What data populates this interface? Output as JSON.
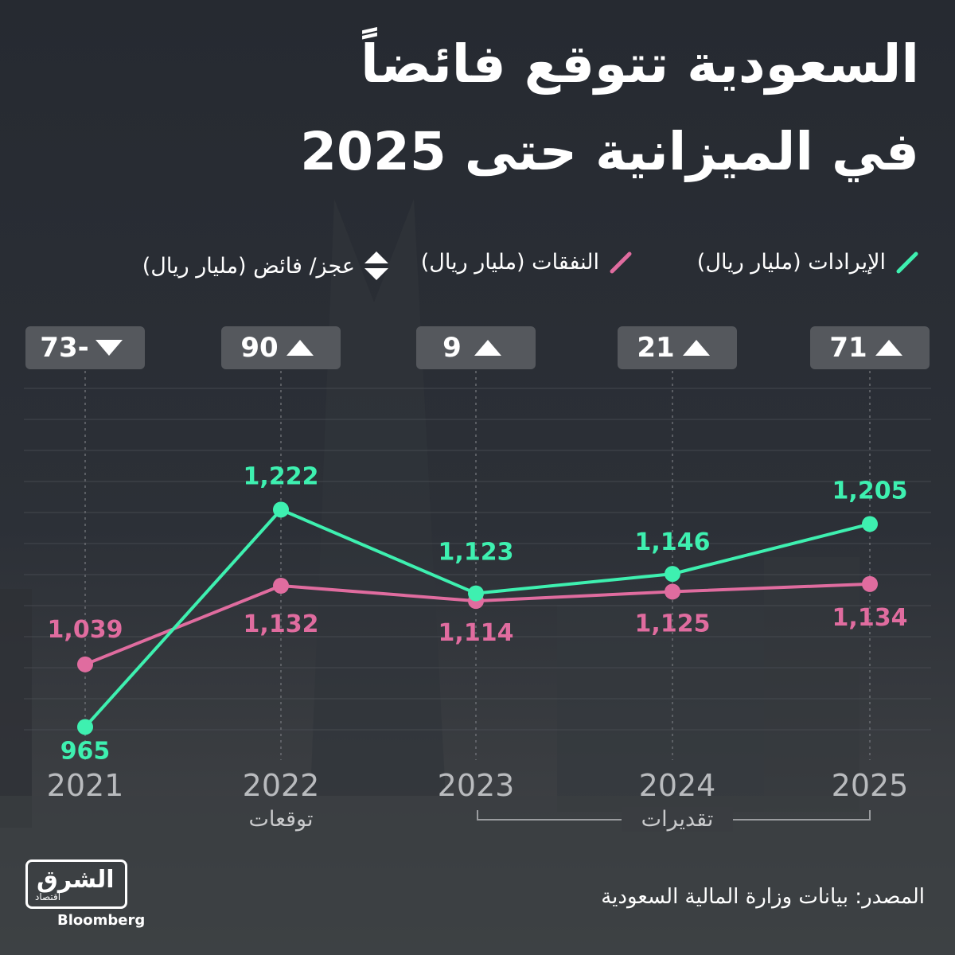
{
  "title_line1": "السعودية تتوقع فائضاً",
  "title_line2": "في الميزانية حتى 2025",
  "legend": {
    "revenue": "الإيرادات (مليار ريال)",
    "spending": "النفقات (مليار ريال)",
    "balance": "عجز/ فائض (مليار ريال)"
  },
  "colors": {
    "revenue": "#3ef0b0",
    "spending": "#e06c9f",
    "background": "#2a2d33"
  },
  "balances": [
    {
      "year": "2021",
      "value": "73-",
      "direction": "down"
    },
    {
      "year": "2022",
      "value": "90",
      "direction": "up"
    },
    {
      "year": "2023",
      "value": "9",
      "direction": "up"
    },
    {
      "year": "2024",
      "value": "21",
      "direction": "up"
    },
    {
      "year": "2025",
      "value": "71",
      "direction": "up"
    }
  ],
  "sublabels": {
    "forecast": "توقعات",
    "estimates": "تقديرات"
  },
  "source": "المصدر: بيانات وزارة المالية السعودية",
  "logo": {
    "arabic": "الشرق",
    "small": "اقتصاد",
    "bloomberg": "Bloomberg"
  },
  "chart_data": {
    "type": "line",
    "x": [
      "2021",
      "2022",
      "2023",
      "2024",
      "2025"
    ],
    "series": [
      {
        "name": "الإيرادات (مليار ريال)",
        "values": [
          965,
          1222,
          1123,
          1146,
          1205
        ],
        "labels": [
          "965",
          "1,222",
          "1,123",
          "1,146",
          "1,205"
        ]
      },
      {
        "name": "النفقات (مليار ريال)",
        "values": [
          1039,
          1132,
          1114,
          1125,
          1134
        ],
        "labels": [
          "1,039",
          "1,132",
          "1,114",
          "1,125",
          "1,134"
        ]
      }
    ],
    "ylim": [
      940,
      1260
    ],
    "grid": true
  }
}
